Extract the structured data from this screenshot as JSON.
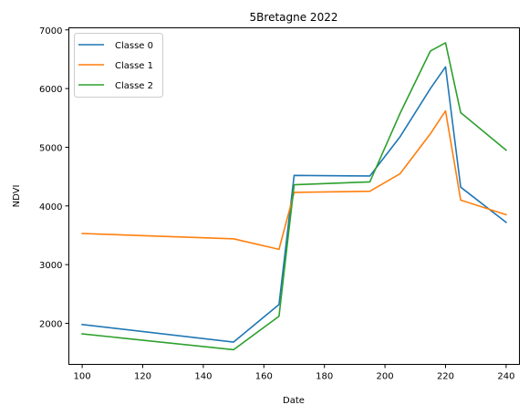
{
  "chart_data": {
    "type": "line",
    "title": "5Bretagne 2022",
    "xlabel": "Date",
    "ylabel": "NDVI",
    "xlim": [
      95.6,
      244.4
    ],
    "ylim": [
      1300,
      7035
    ],
    "xticks": [
      100,
      120,
      140,
      160,
      180,
      200,
      220,
      240
    ],
    "yticks": [
      2000,
      3000,
      4000,
      5000,
      6000,
      7000
    ],
    "x": [
      100,
      150,
      165,
      170,
      195,
      205,
      215,
      220,
      225,
      240
    ],
    "legend_position": "upper left",
    "grid": false,
    "series": [
      {
        "name": "Classe 0",
        "color": "#1f77b4",
        "values": [
          1980,
          1680,
          2320,
          4520,
          4510,
          5180,
          6000,
          6370,
          4320,
          3720
        ]
      },
      {
        "name": "Classe 1",
        "color": "#ff7f0e",
        "values": [
          3530,
          3440,
          3260,
          4230,
          4250,
          4550,
          5230,
          5620,
          4100,
          3850
        ]
      },
      {
        "name": "Classe 2",
        "color": "#2ca02c",
        "values": [
          1820,
          1550,
          2120,
          4360,
          4410,
          5580,
          6640,
          6780,
          5590,
          4950
        ]
      }
    ]
  }
}
